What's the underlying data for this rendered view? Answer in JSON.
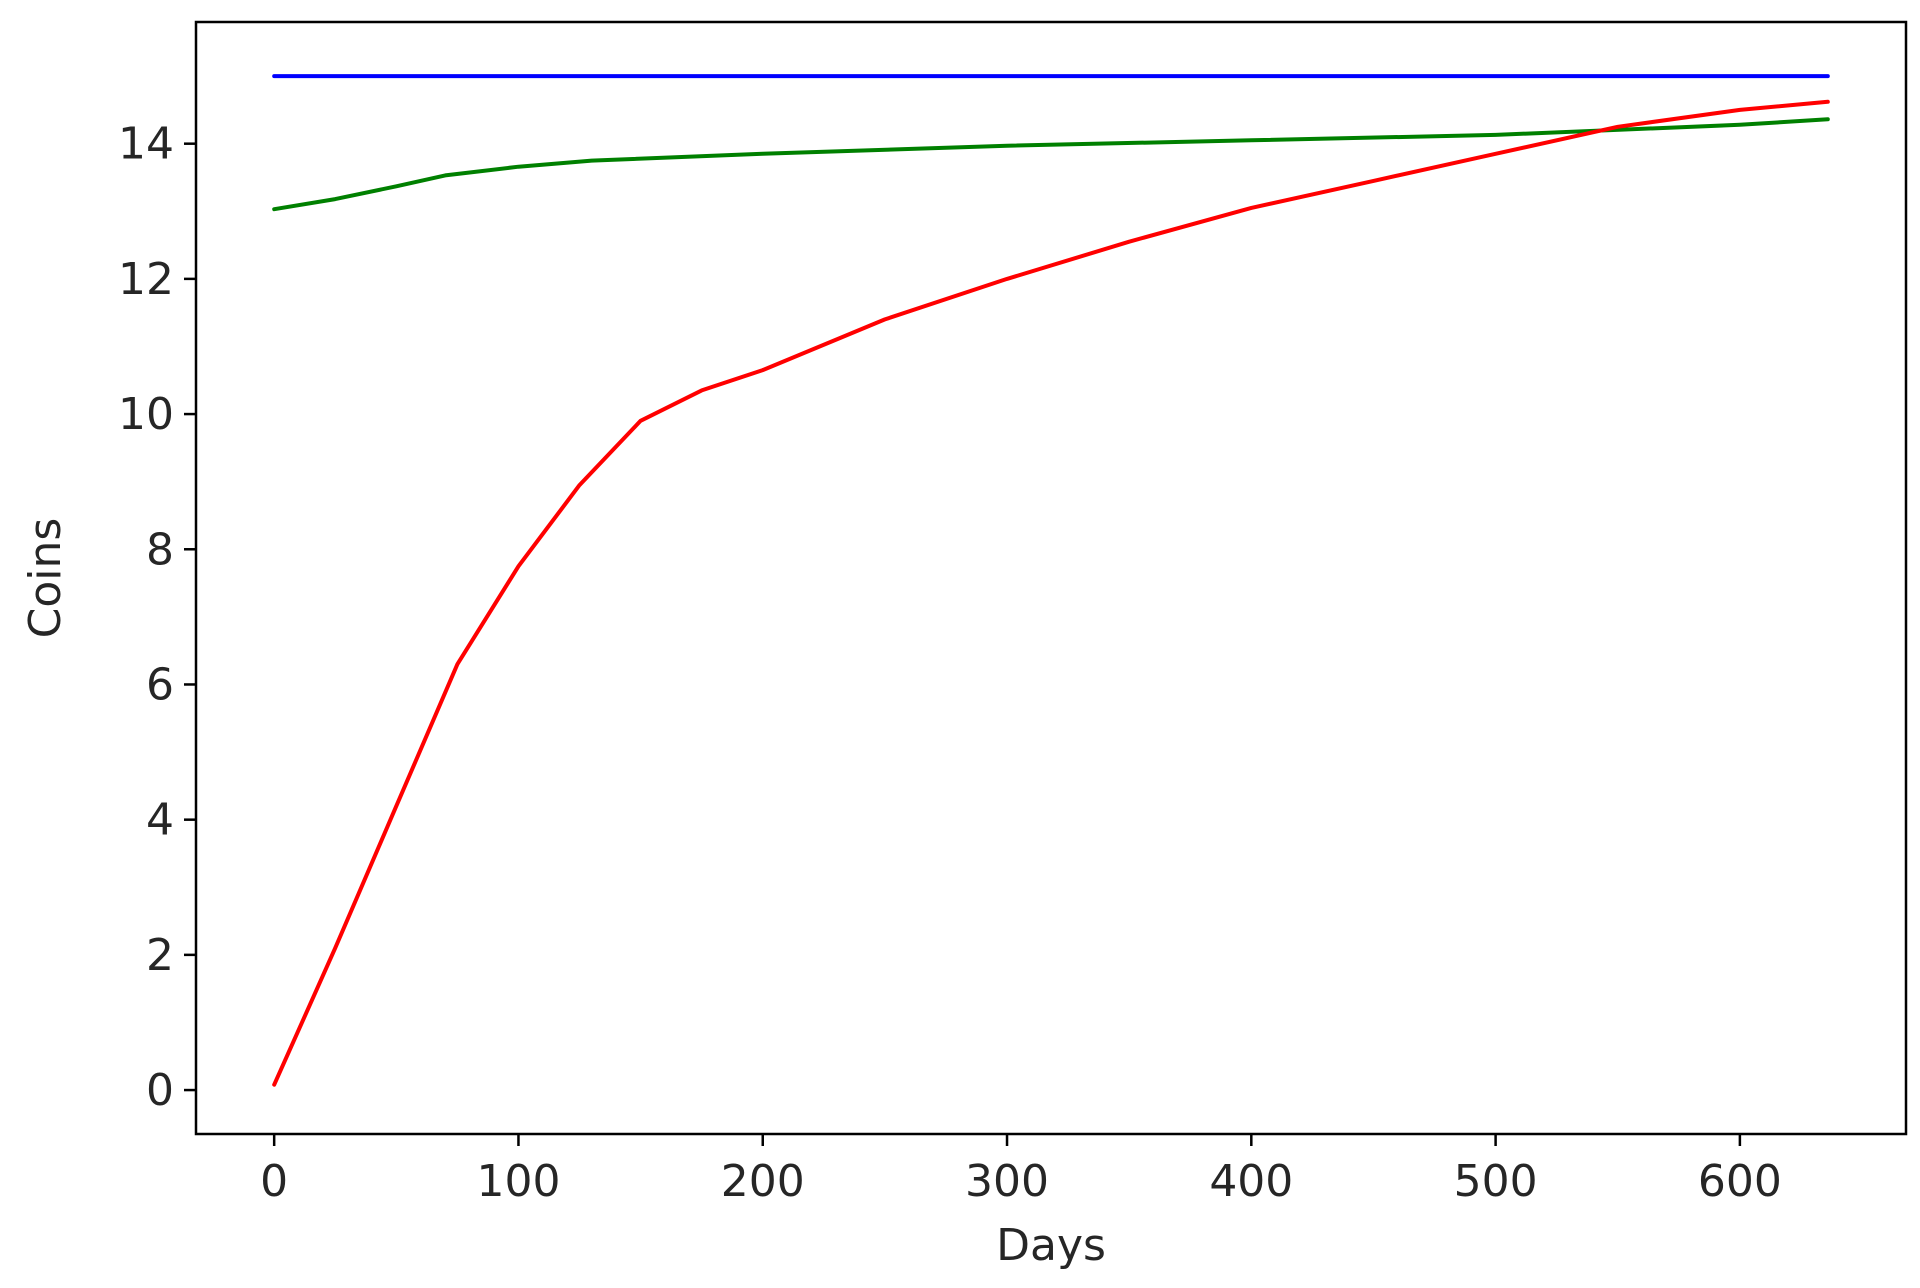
{
  "chart_data": {
    "type": "line",
    "title": "",
    "xlabel": "Days",
    "ylabel": "Coins",
    "xlim": [
      -32,
      668
    ],
    "ylim": [
      -0.65,
      15.8
    ],
    "xticks": [
      0,
      100,
      200,
      300,
      400,
      500,
      600
    ],
    "yticks": [
      0,
      2,
      4,
      6,
      8,
      10,
      12,
      14
    ],
    "grid": false,
    "legend": "none",
    "series": [
      {
        "color": "#0000ff",
        "x": [
          0,
          100,
          200,
          300,
          400,
          500,
          600,
          636
        ],
        "y": [
          15,
          15,
          15,
          15,
          15,
          15,
          15,
          15
        ]
      },
      {
        "color": "#008000",
        "x": [
          0,
          25,
          50,
          70,
          100,
          130,
          200,
          300,
          400,
          500,
          600,
          636
        ],
        "y": [
          13.03,
          13.18,
          13.37,
          13.53,
          13.66,
          13.75,
          13.85,
          13.97,
          14.05,
          14.13,
          14.28,
          14.36
        ]
      },
      {
        "color": "#ff0000",
        "x": [
          0,
          25,
          50,
          75,
          100,
          125,
          150,
          175,
          200,
          250,
          300,
          350,
          400,
          450,
          500,
          550,
          600,
          636
        ],
        "y": [
          0.08,
          2.1,
          4.2,
          6.3,
          7.75,
          8.95,
          9.9,
          10.35,
          10.65,
          11.4,
          12.0,
          12.55,
          13.05,
          13.45,
          13.85,
          14.25,
          14.5,
          14.62
        ]
      }
    ]
  }
}
